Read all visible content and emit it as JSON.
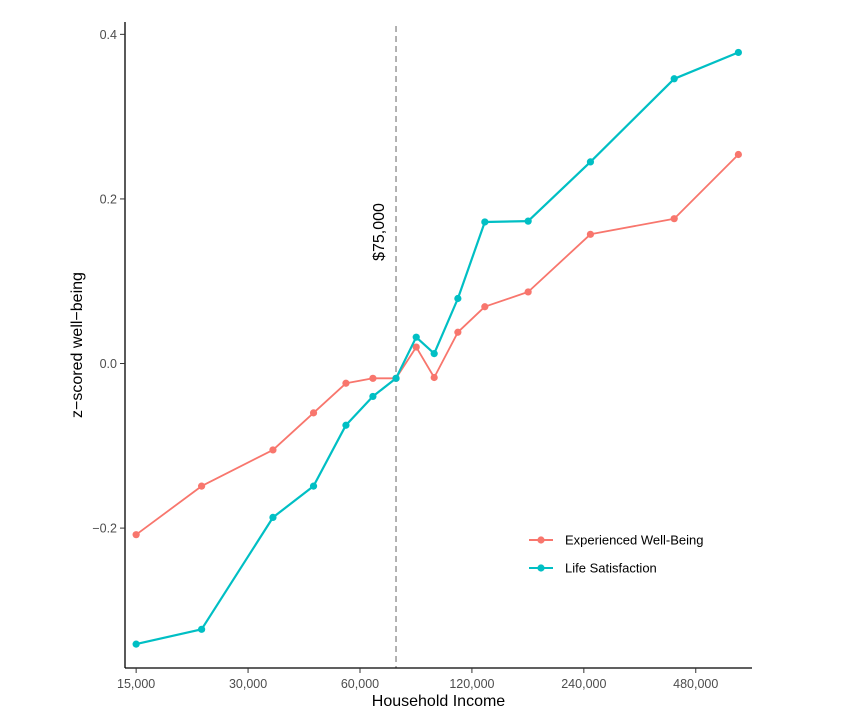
{
  "chart_data": {
    "type": "line",
    "xlabel": "Household Income",
    "ylabel": "z−scored well−being",
    "x_scale": "log",
    "x_ticks": [
      15000,
      30000,
      60000,
      120000,
      240000,
      480000
    ],
    "x_tick_labels": [
      "15,000",
      "30,000",
      "60,000",
      "120,000",
      "240,000",
      "480,000"
    ],
    "y_ticks": [
      -0.2,
      0.0,
      0.2,
      0.4
    ],
    "y_tick_labels": [
      "−0.2",
      "0.0",
      "0.2",
      "0.4"
    ],
    "xlim": [
      14000,
      680000
    ],
    "ylim": [
      -0.37,
      0.415
    ],
    "grid": false,
    "legend_position": "bottom-right",
    "x": [
      15000,
      22500,
      35000,
      45000,
      55000,
      65000,
      75000,
      85000,
      95000,
      110000,
      130000,
      170000,
      250000,
      420000,
      625000
    ],
    "series": [
      {
        "name": "Experienced Well-Being",
        "color": "#F8766D",
        "values": [
          -0.208,
          -0.149,
          -0.105,
          -0.06,
          -0.024,
          -0.018,
          -0.018,
          0.02,
          -0.017,
          0.038,
          0.069,
          0.087,
          0.157,
          0.176,
          0.254
        ]
      },
      {
        "name": "Life Satisfaction",
        "color": "#00BFC4",
        "values": [
          -0.341,
          -0.323,
          -0.187,
          -0.149,
          -0.075,
          -0.04,
          -0.018,
          0.032,
          0.012,
          0.079,
          0.172,
          0.173,
          0.245,
          0.346,
          0.378
        ]
      }
    ],
    "reference_line": {
      "x": 75000,
      "label": "$75,000",
      "color": "#999999"
    }
  }
}
